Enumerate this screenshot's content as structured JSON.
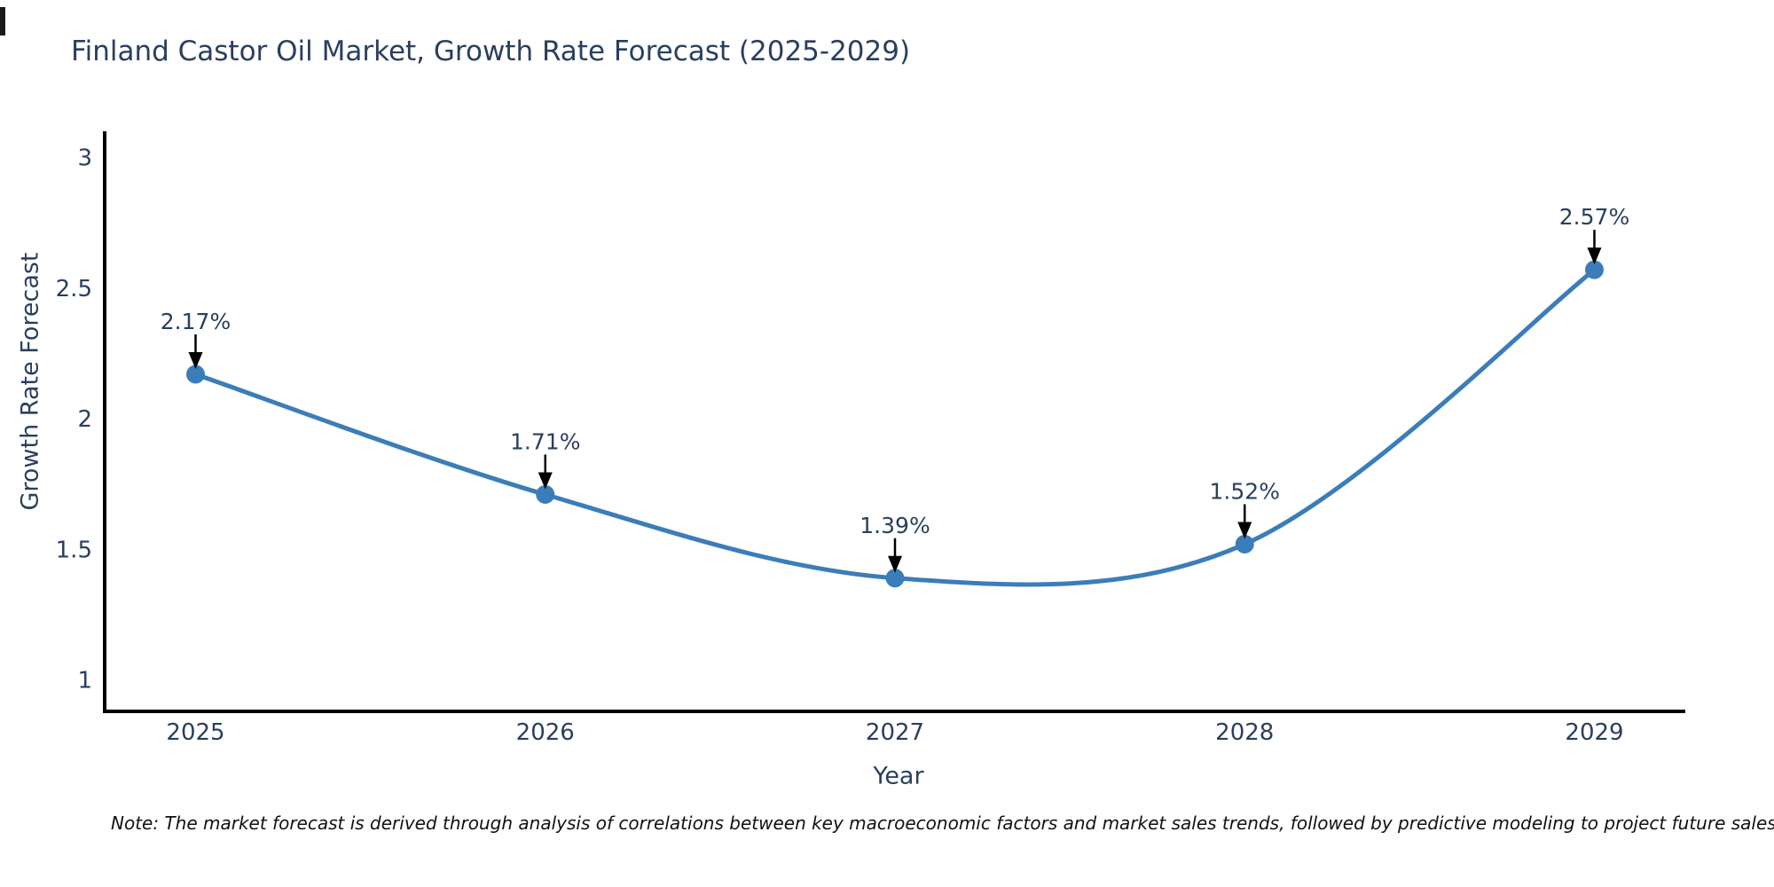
{
  "title": "Finland Castor Oil Market, Growth Rate Forecast (2025-2029)",
  "note": "Note: The market forecast is derived through analysis of correlations between key macroeconomic factors and market sales trends, followed by predictive modeling to project future sales",
  "chart_data": {
    "type": "line",
    "title": "Finland Castor Oil Market, Growth Rate Forecast (2025-2029)",
    "xlabel": "Year",
    "ylabel": "Growth Rate Forecast",
    "x": [
      2025,
      2026,
      2027,
      2028,
      2029
    ],
    "y": [
      2.17,
      1.71,
      1.39,
      1.52,
      2.57
    ],
    "point_labels": [
      "2.17%",
      "1.71%",
      "1.39%",
      "1.52%",
      "2.57%"
    ],
    "x_tick_labels": [
      "2025",
      "2026",
      "2027",
      "2028",
      "2029"
    ],
    "y_ticks": [
      1,
      1.5,
      2,
      2.5,
      3
    ],
    "y_tick_labels": [
      "1",
      "1.5",
      "2",
      "2.5",
      "3"
    ],
    "x_range": [
      2024.74,
      2029.26
    ],
    "y_range": [
      0.88,
      3.1
    ],
    "line_shape": "spline",
    "grid": false,
    "legend": false,
    "colors": {
      "line": "#3b7db9",
      "marker": "#3b7db9",
      "axis": "#000000",
      "annotation_arrow": "#000000",
      "title_text": "#2a3f5f",
      "background": "#ffffff"
    }
  }
}
